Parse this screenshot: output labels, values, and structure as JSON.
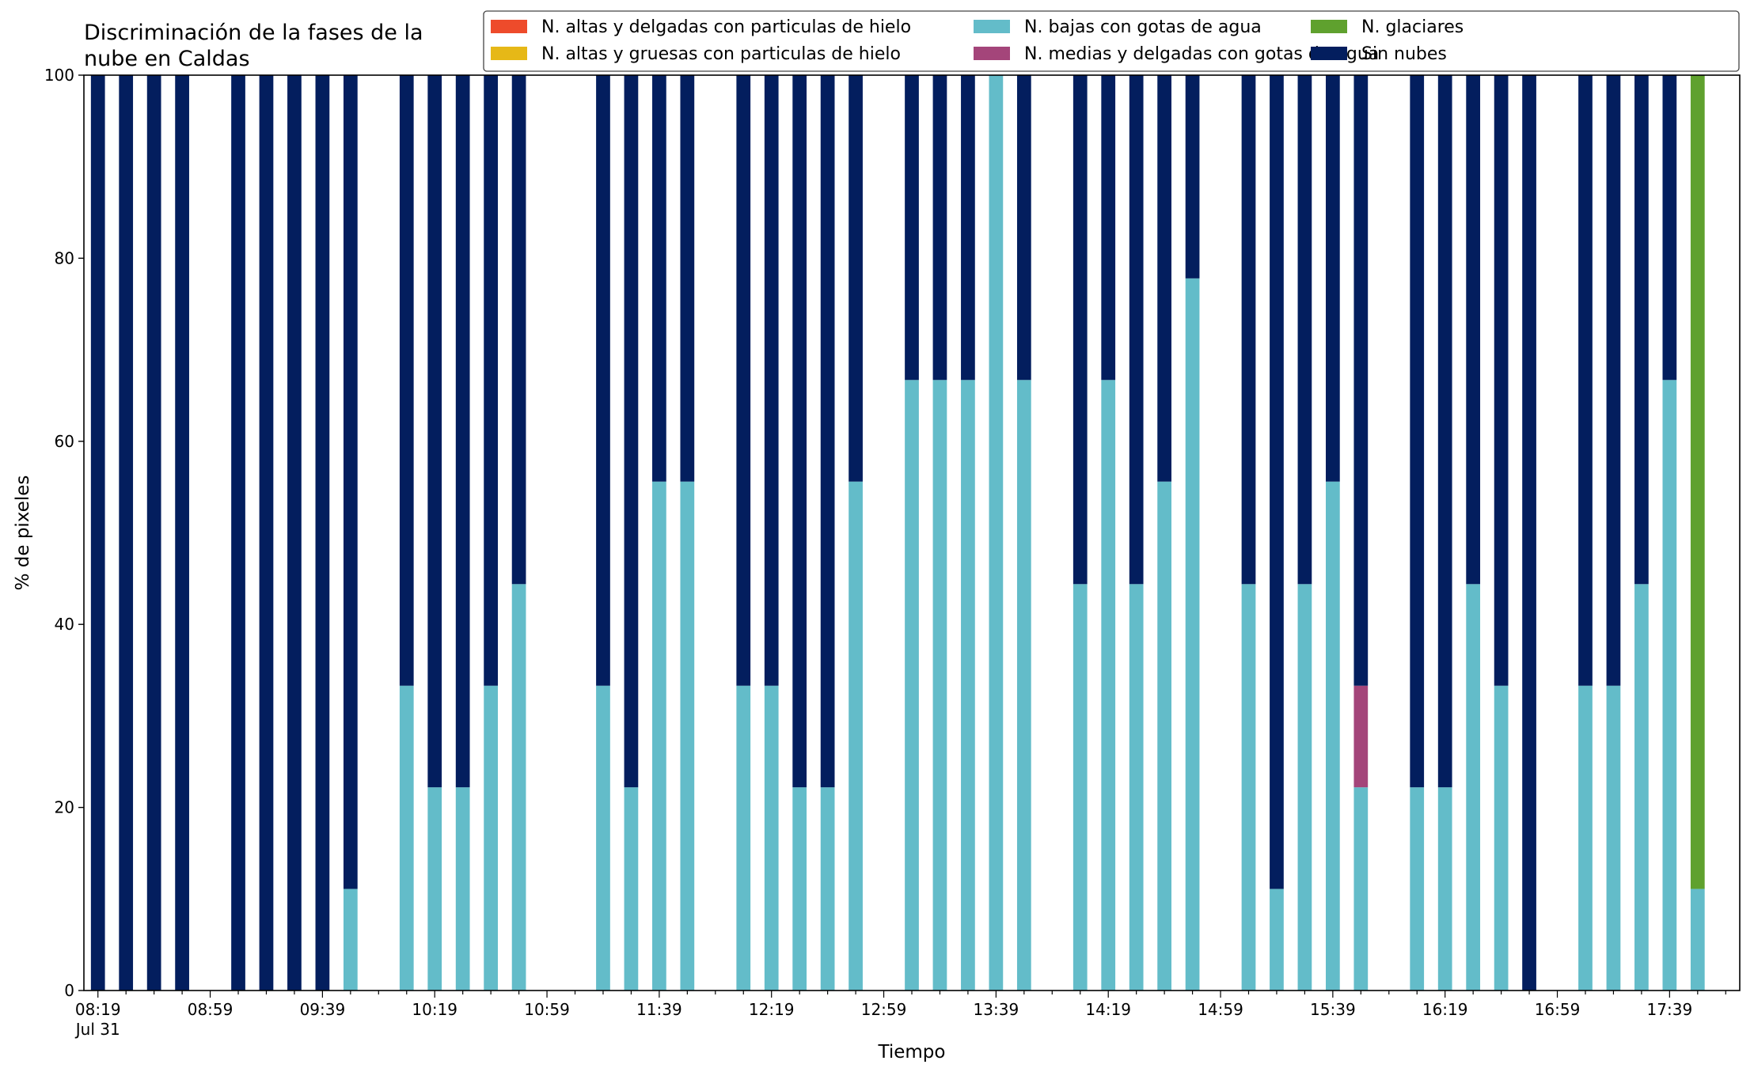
{
  "chart_data": {
    "type": "bar",
    "stacked": true,
    "title": "Discriminación de la fases de la\nnube en Caldas",
    "xlabel": "Tiempo",
    "ylabel": "% de pixeles",
    "ylim": [
      0,
      100
    ],
    "yticks": [
      0,
      20,
      40,
      60,
      80,
      100
    ],
    "xlim": [
      0,
      59
    ],
    "xtick_labels": [
      {
        "slot": 0.5,
        "label": "08:19",
        "sublabel": "Jul 31"
      },
      {
        "slot": 4.5,
        "label": "08:59"
      },
      {
        "slot": 8.5,
        "label": "09:39"
      },
      {
        "slot": 12.5,
        "label": "10:19"
      },
      {
        "slot": 16.5,
        "label": "10:59"
      },
      {
        "slot": 20.5,
        "label": "11:39"
      },
      {
        "slot": 24.5,
        "label": "12:19"
      },
      {
        "slot": 28.5,
        "label": "12:59"
      },
      {
        "slot": 32.5,
        "label": "13:39"
      },
      {
        "slot": 36.5,
        "label": "14:19"
      },
      {
        "slot": 40.5,
        "label": "14:59"
      },
      {
        "slot": 44.5,
        "label": "15:39"
      },
      {
        "slot": 48.5,
        "label": "16:19"
      },
      {
        "slot": 52.5,
        "label": "16:59"
      },
      {
        "slot": 56.5,
        "label": "17:39"
      }
    ],
    "legend_position": "top-right",
    "grid": false,
    "series": [
      {
        "name": "N. altas y delgadas con particulas de hielo",
        "color": "#EE4B2B",
        "values": [
          0,
          0,
          0,
          0,
          null,
          0,
          0,
          0,
          0,
          0,
          null,
          0,
          0,
          0,
          0,
          0,
          null,
          null,
          0,
          0,
          0,
          0,
          null,
          0,
          0,
          0,
          0,
          0,
          null,
          0,
          0,
          0,
          0,
          0,
          null,
          0,
          0,
          0,
          0,
          0,
          null,
          0,
          0,
          0,
          0,
          0,
          null,
          0,
          0,
          0,
          0,
          0,
          null,
          0,
          0,
          0,
          0,
          0,
          0
        ]
      },
      {
        "name": "N. altas y gruesas con particulas de hielo",
        "color": "#E6B817",
        "values": [
          0,
          0,
          0,
          0,
          null,
          0,
          0,
          0,
          0,
          0,
          null,
          0,
          0,
          0,
          0,
          0,
          null,
          null,
          0,
          0,
          0,
          0,
          null,
          0,
          0,
          0,
          0,
          0,
          null,
          0,
          0,
          0,
          0,
          0,
          null,
          0,
          0,
          0,
          0,
          0,
          null,
          0,
          0,
          0,
          0,
          0,
          null,
          0,
          0,
          0,
          0,
          0,
          null,
          0,
          0,
          0,
          0,
          0,
          0
        ]
      },
      {
        "name": "N. bajas con gotas de agua",
        "color": "#63BCC9",
        "values": [
          0,
          0,
          0,
          0,
          null,
          0,
          0,
          0,
          0,
          11.1,
          null,
          33.3,
          22.2,
          22.2,
          33.3,
          44.4,
          null,
          null,
          33.3,
          22.2,
          55.6,
          55.6,
          null,
          33.3,
          33.3,
          22.2,
          22.2,
          55.6,
          null,
          66.7,
          66.7,
          66.7,
          100,
          66.7,
          null,
          44.4,
          66.7,
          44.4,
          55.6,
          77.8,
          null,
          44.4,
          11.1,
          44.4,
          55.6,
          22.2,
          null,
          22.2,
          22.2,
          44.4,
          33.3,
          0,
          null,
          33.3,
          33.3,
          44.4,
          66.7,
          11.1
        ]
      },
      {
        "name": "N. medias y delgadas con gotas de agua",
        "color": "#A4457A",
        "values": [
          0,
          0,
          0,
          0,
          null,
          0,
          0,
          0,
          0,
          0,
          null,
          0,
          0,
          0,
          0,
          0,
          null,
          null,
          0,
          0,
          0,
          0,
          null,
          0,
          0,
          0,
          0,
          0,
          null,
          0,
          0,
          0,
          0,
          0,
          null,
          0,
          0,
          0,
          0,
          0,
          null,
          0,
          0,
          0,
          0,
          11.1,
          null,
          0,
          0,
          0,
          0,
          0,
          null,
          0,
          0,
          0,
          0,
          0
        ]
      },
      {
        "name": "N. glaciares",
        "color": "#5FA12E",
        "values": [
          0,
          0,
          0,
          0,
          null,
          0,
          0,
          0,
          0,
          0,
          null,
          0,
          0,
          0,
          0,
          0,
          null,
          null,
          0,
          0,
          0,
          0,
          null,
          0,
          0,
          0,
          0,
          0,
          null,
          0,
          0,
          0,
          0,
          0,
          null,
          0,
          0,
          0,
          0,
          0,
          null,
          0,
          0,
          0,
          0,
          0,
          null,
          0,
          0,
          0,
          0,
          0,
          null,
          0,
          0,
          0,
          0,
          88.9
        ]
      },
      {
        "name": "Sin nubes",
        "color": "#031E5E",
        "values": [
          100,
          100,
          100,
          100,
          null,
          100,
          100,
          100,
          100,
          88.9,
          null,
          66.7,
          77.8,
          77.8,
          66.7,
          55.6,
          null,
          null,
          66.7,
          77.8,
          44.4,
          44.4,
          null,
          66.7,
          66.7,
          77.8,
          77.8,
          44.4,
          null,
          33.3,
          33.3,
          33.3,
          0,
          33.3,
          null,
          55.6,
          33.3,
          55.6,
          44.4,
          22.2,
          null,
          55.6,
          88.9,
          55.6,
          44.4,
          66.7,
          null,
          77.8,
          77.8,
          55.6,
          66.7,
          100,
          null,
          66.7,
          66.7,
          55.6,
          33.3,
          0
        ]
      }
    ]
  }
}
